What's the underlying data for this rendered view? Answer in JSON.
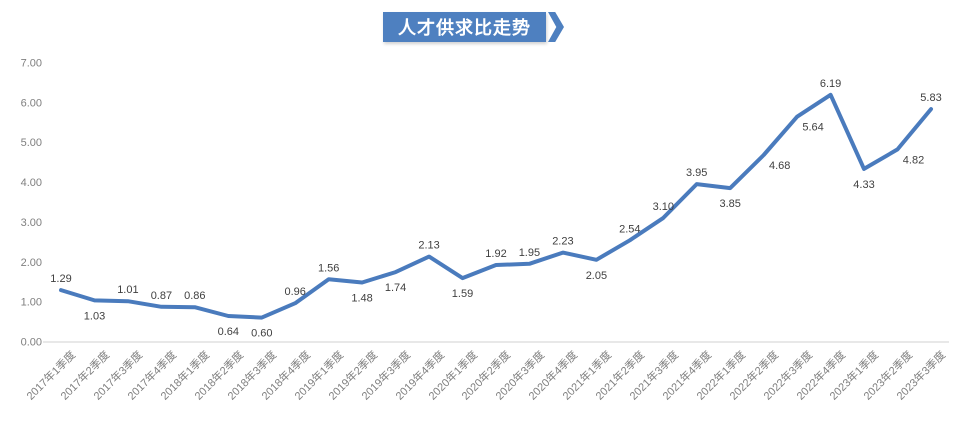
{
  "title": {
    "text": "人才供求比走势"
  },
  "colors": {
    "banner": "#4e80c0",
    "line": "#4a7bbd",
    "data_label": "#404040",
    "axis_label": "#7f7f7f",
    "axis_line": "#d9d9d9",
    "title_text": "#ffffff"
  },
  "chart_data": {
    "type": "line",
    "title": "人才供求比走势",
    "xlabel": "",
    "ylabel": "",
    "ylim": [
      0,
      7
    ],
    "grid": false,
    "legend": "none",
    "y_ticks": [
      "0.00",
      "1.00",
      "2.00",
      "3.00",
      "4.00",
      "5.00",
      "6.00",
      "7.00"
    ],
    "categories": [
      "2017年1季度",
      "2017年2季度",
      "2017年3季度",
      "2017年4季度",
      "2018年1季度",
      "2018年2季度",
      "2018年3季度",
      "2018年4季度",
      "2019年1季度",
      "2019年2季度",
      "2019年3季度",
      "2019年4季度",
      "2020年1季度",
      "2020年2季度",
      "2020年3季度",
      "2020年4季度",
      "2021年1季度",
      "2021年2季度",
      "2021年3季度",
      "2021年4季度",
      "2022年1季度",
      "2022年2季度",
      "2022年3季度",
      "2022年4季度",
      "2023年1季度",
      "2023年2季度",
      "2023年3季度"
    ],
    "values": [
      1.29,
      1.03,
      1.01,
      0.87,
      0.86,
      0.64,
      0.6,
      0.96,
      1.56,
      1.48,
      1.74,
      2.13,
      1.59,
      1.92,
      1.95,
      2.23,
      2.05,
      2.54,
      3.1,
      3.95,
      3.85,
      4.68,
      5.64,
      6.19,
      4.33,
      4.82,
      5.83
    ],
    "label_positions": [
      "above",
      "below",
      "above",
      "above",
      "above",
      "below",
      "below",
      "above",
      "above",
      "below",
      "below",
      "above",
      "below",
      "above",
      "above",
      "above",
      "below",
      "above",
      "above",
      "above",
      "below",
      "right-below",
      "right-below",
      "above",
      "below",
      "right-below",
      "above"
    ]
  }
}
